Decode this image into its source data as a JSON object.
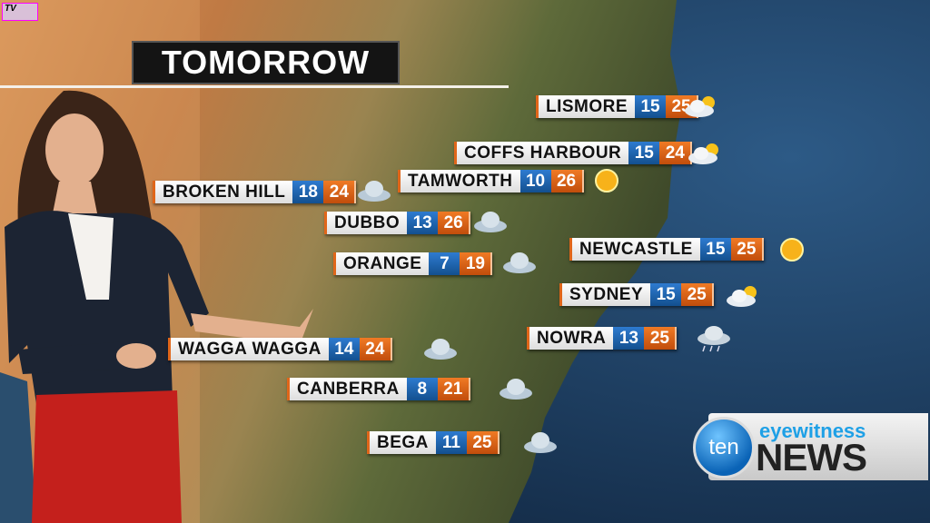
{
  "title": "TOMORROW",
  "channel_bug": "TV",
  "news_logo": {
    "circle": "ten",
    "top": "eyewitness",
    "bottom": "NEWS"
  },
  "colors": {
    "min_temp": "#1e63b0",
    "max_temp": "#e0661a",
    "land": "#b5773e",
    "ocean": "#1c3a5c"
  },
  "forecasts": [
    {
      "city": "LISMORE",
      "min": "15",
      "max": "25",
      "icon": "partly-cloudy"
    },
    {
      "city": "COFFS HARBOUR",
      "min": "15",
      "max": "24",
      "icon": "partly-cloudy"
    },
    {
      "city": "TAMWORTH",
      "min": "10",
      "max": "26",
      "icon": "sunny"
    },
    {
      "city": "BROKEN HILL",
      "min": "18",
      "max": "24",
      "icon": "cloudy"
    },
    {
      "city": "DUBBO",
      "min": "13",
      "max": "26",
      "icon": "cloudy"
    },
    {
      "city": "ORANGE",
      "min": "7",
      "max": "19",
      "icon": "cloudy"
    },
    {
      "city": "NEWCASTLE",
      "min": "15",
      "max": "25",
      "icon": "sunny"
    },
    {
      "city": "SYDNEY",
      "min": "15",
      "max": "25",
      "icon": "partly-cloudy"
    },
    {
      "city": "NOWRA",
      "min": "13",
      "max": "25",
      "icon": "showers"
    },
    {
      "city": "WAGGA WAGGA",
      "min": "14",
      "max": "24",
      "icon": "cloudy"
    },
    {
      "city": "CANBERRA",
      "min": "8",
      "max": "21",
      "icon": "cloudy"
    },
    {
      "city": "BEGA",
      "min": "11",
      "max": "25",
      "icon": "cloudy"
    }
  ]
}
